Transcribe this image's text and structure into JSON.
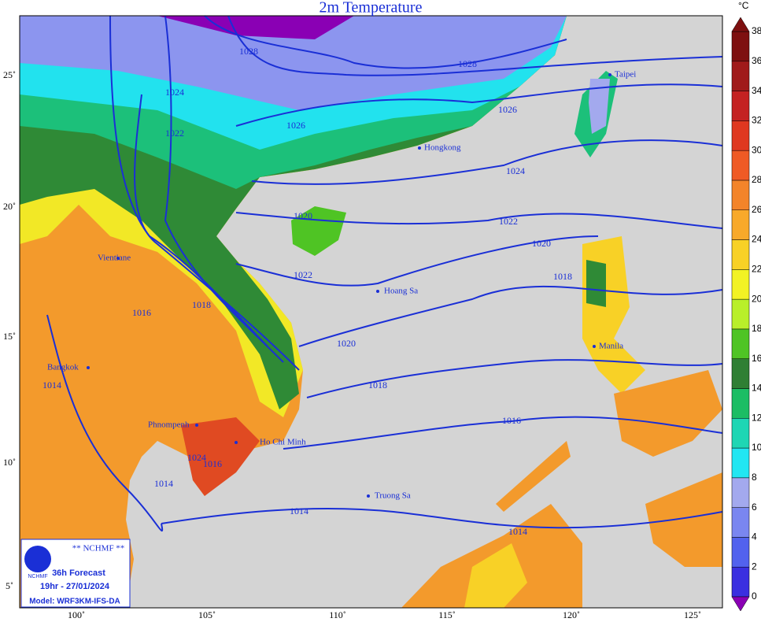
{
  "title": "2m Temperature",
  "lon_labels": [
    "100˚",
    "105˚",
    "110˚",
    "115˚",
    "120˚",
    "125˚"
  ],
  "lat_labels": [
    "25˚",
    "20˚",
    "15˚",
    "10˚",
    "5˚"
  ],
  "colorbar": {
    "unit": "°C",
    "ticks": [
      0,
      2,
      4,
      6,
      8,
      10,
      12,
      14,
      16,
      18,
      20,
      22,
      24,
      26,
      28,
      30,
      32,
      34,
      36,
      38
    ],
    "colors": [
      "#8a00b4",
      "#3a2fe0",
      "#5262ee",
      "#7a86f0",
      "#a3a9ee",
      "#22e6f2",
      "#1ed6b4",
      "#1cbd64",
      "#2f7f34",
      "#4fc424",
      "#b9ef2a",
      "#f2f224",
      "#f8d126",
      "#f8a92a",
      "#f3842a",
      "#ef5a25",
      "#df3820",
      "#c42222",
      "#a01a1a",
      "#7e1010"
    ]
  },
  "isobars": [
    "1028",
    "1028",
    "1026",
    "1026",
    "1024",
    "1024",
    "1022",
    "1022",
    "1020",
    "1020",
    "1018",
    "1018",
    "1016",
    "1016",
    "1014",
    "1014",
    "1014",
    "1016",
    "1018",
    "1020",
    "1022",
    "1024",
    "1014"
  ],
  "cities": [
    "Taipei",
    "Hongkong",
    "Hoang Sa",
    "Manila",
    "Bangkok",
    "Phnompenh",
    "Ho Chi Minh",
    "Truong Sa",
    "Vientiane"
  ],
  "info": {
    "org": "** NCHMF **",
    "forecast": "36h Forecast",
    "time": "19hr - 27/01/2024",
    "model": "Model: WRF3KM-IFS-DA",
    "logo": "NCHMF"
  }
}
